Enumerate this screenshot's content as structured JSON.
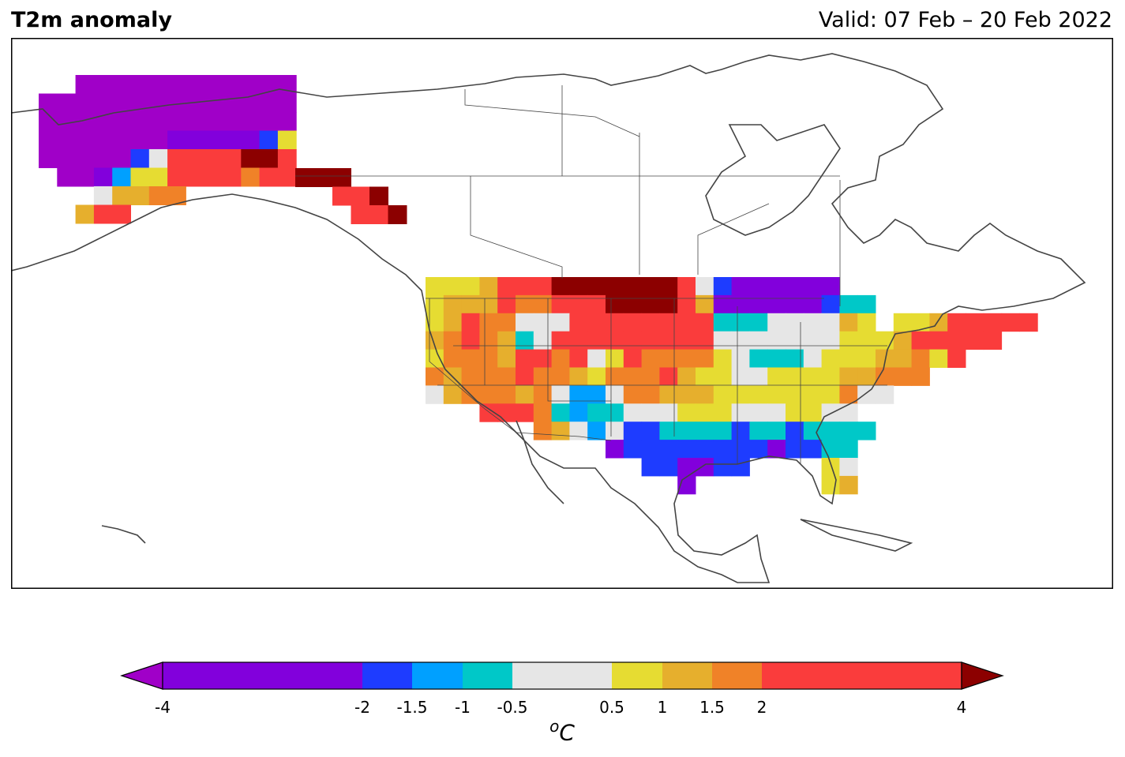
{
  "title": "T2m anomaly",
  "valid": "Valid: 07 Feb – 20 Feb 2022",
  "unit": "C",
  "unit_superscript": "o",
  "colorbar": {
    "ticks": [
      "-4",
      "-2",
      "-1.5",
      "-1",
      "-0.5",
      "0.5",
      "1",
      "1.5",
      "2",
      "4"
    ],
    "bounds": [
      -4,
      -2,
      -1.5,
      -1,
      -0.5,
      0.5,
      1,
      1.5,
      2,
      4
    ],
    "colors": [
      "#8200dc",
      "#1e3cff",
      "#00a0ff",
      "#00c8c8",
      "#e6e6e6",
      "#e6dc32",
      "#e6af2d",
      "#f08228",
      "#fa3c3c"
    ],
    "under_color": "#a000c8",
    "over_color": "#8c0000"
  }
}
